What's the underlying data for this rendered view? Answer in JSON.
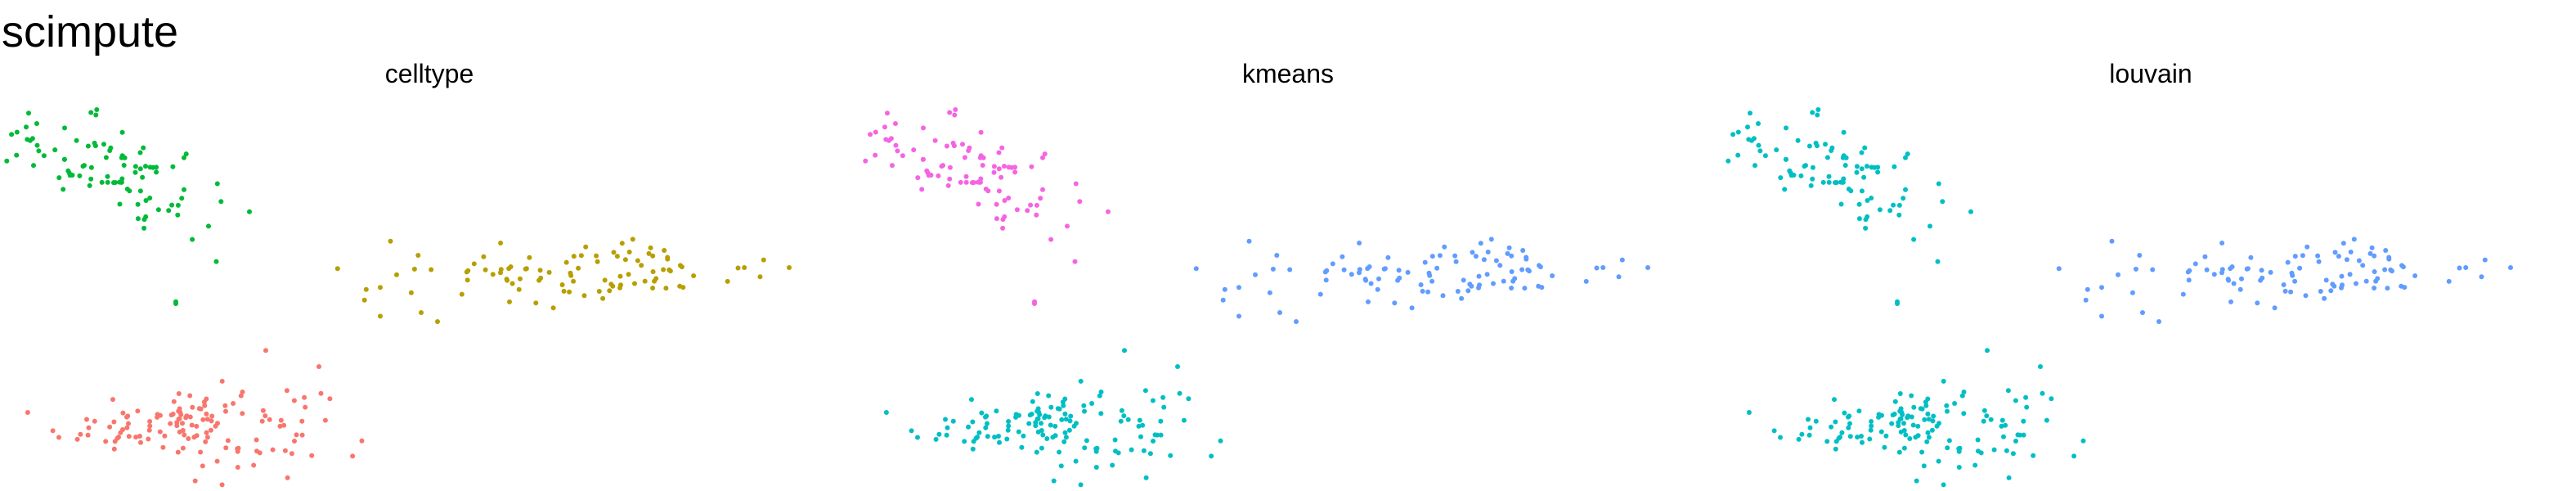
{
  "title": "scimpute",
  "colors": {
    "red": "#F8766D",
    "olive": "#B79F00",
    "green": "#00BA38",
    "cyan": "#00BFC4",
    "blue": "#619CFF",
    "magenta": "#F564E3"
  },
  "chart_data": [
    {
      "type": "scatter",
      "title": "celltype",
      "xlim": [
        0,
        1
      ],
      "ylim": [
        0,
        1
      ],
      "grid": false,
      "axes_visible": false,
      "clusters": [
        {
          "color": "red",
          "cx": 0.21,
          "cy": 0.14,
          "sx": 0.08,
          "sy": 0.055,
          "n": 130,
          "outliers": [
            [
              0.365,
              0.3
            ],
            [
              0.3,
              0.345
            ],
            [
              0.13,
              0.16
            ],
            [
              0.125,
              0.125
            ]
          ]
        },
        {
          "color": "olive",
          "cx": 0.68,
          "cy": 0.56,
          "sx": 0.12,
          "sy": 0.04,
          "n": 95,
          "outliers": [
            [
              0.94,
              0.575
            ],
            [
              0.44,
              0.52
            ],
            [
              0.49,
              0.45
            ],
            [
              0.51,
              0.425
            ],
            [
              0.44,
              0.44
            ]
          ]
        },
        {
          "color": "green",
          "cx": 0.11,
          "cy": 0.85,
          "sx": 0.05,
          "sy": 0.08,
          "n": 90,
          "outliers": [
            [
              0.02,
              0.975
            ],
            [
              0.2,
              0.88
            ],
            [
              0.28,
              0.73
            ],
            [
              0.23,
              0.69
            ],
            [
              0.19,
              0.48
            ],
            [
              0.19,
              0.475
            ]
          ]
        }
      ]
    },
    {
      "type": "scatter",
      "title": "kmeans",
      "xlim": [
        0,
        1
      ],
      "ylim": [
        0,
        1
      ],
      "grid": false,
      "axes_visible": false,
      "clusters": [
        {
          "color": "cyan",
          "cx": 0.21,
          "cy": 0.14,
          "sx": 0.08,
          "sy": 0.055,
          "n": 130,
          "outliers": [
            [
              0.365,
              0.3
            ],
            [
              0.3,
              0.345
            ],
            [
              0.34,
              0.11
            ],
            [
              0.32,
              0.105
            ],
            [
              0.13,
              0.16
            ]
          ]
        },
        {
          "color": "blue",
          "cx": 0.68,
          "cy": 0.56,
          "sx": 0.12,
          "sy": 0.04,
          "n": 95,
          "outliers": [
            [
              0.94,
              0.575
            ],
            [
              0.44,
              0.52
            ],
            [
              0.49,
              0.45
            ],
            [
              0.51,
              0.425
            ],
            [
              0.44,
              0.44
            ]
          ]
        },
        {
          "color": "magenta",
          "cx": 0.11,
          "cy": 0.85,
          "sx": 0.05,
          "sy": 0.08,
          "n": 90,
          "outliers": [
            [
              0.02,
              0.975
            ],
            [
              0.2,
              0.88
            ],
            [
              0.28,
              0.73
            ],
            [
              0.23,
              0.69
            ],
            [
              0.19,
              0.48
            ],
            [
              0.19,
              0.475
            ]
          ]
        }
      ]
    },
    {
      "type": "scatter",
      "title": "louvain",
      "xlim": [
        0,
        1
      ],
      "ylim": [
        0,
        1
      ],
      "grid": false,
      "axes_visible": false,
      "clusters": [
        {
          "color": "cyan",
          "mix": "blue",
          "mix_ratio": 0.45,
          "cx": 0.21,
          "cy": 0.14,
          "sx": 0.08,
          "sy": 0.055,
          "n": 130,
          "outliers": [
            [
              0.365,
              0.3
            ],
            [
              0.3,
              0.345
            ],
            [
              0.34,
              0.11
            ],
            [
              0.32,
              0.105
            ],
            [
              0.13,
              0.16
            ]
          ]
        },
        {
          "color": "blue",
          "mix": "magenta",
          "mix_ratio": 0.55,
          "mix_above_x": 0.68,
          "cx": 0.68,
          "cy": 0.56,
          "sx": 0.12,
          "sy": 0.04,
          "n": 95,
          "outliers": [
            [
              0.94,
              0.575
            ],
            [
              0.44,
              0.52
            ],
            [
              0.49,
              0.45
            ],
            [
              0.51,
              0.425
            ],
            [
              0.44,
              0.44
            ]
          ]
        },
        {
          "color": "cyan",
          "mix": "blue",
          "mix_ratio": 0.4,
          "cx": 0.11,
          "cy": 0.85,
          "sx": 0.05,
          "sy": 0.08,
          "n": 90,
          "outliers": [
            [
              0.02,
              0.975
            ],
            [
              0.2,
              0.88
            ],
            [
              0.28,
              0.73
            ],
            [
              0.23,
              0.69
            ],
            [
              0.19,
              0.48
            ],
            [
              0.19,
              0.475
            ]
          ]
        }
      ]
    }
  ]
}
